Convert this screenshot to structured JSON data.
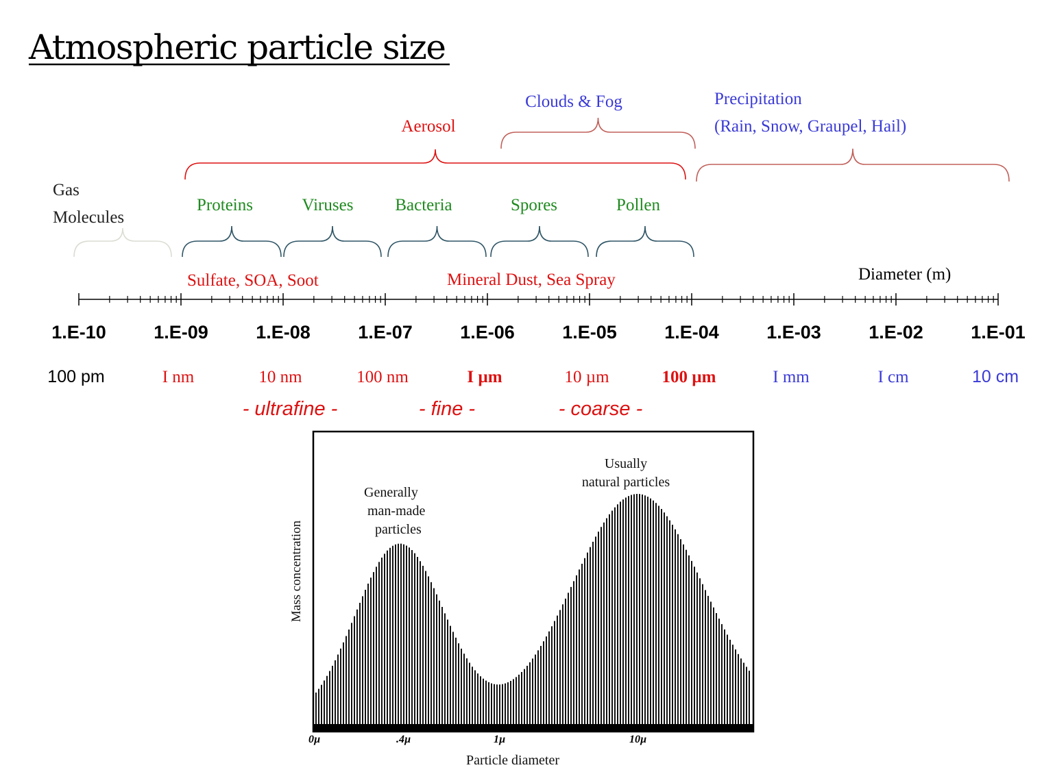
{
  "title": "Atmospheric particle size",
  "groups": {
    "aerosol": "Aerosol",
    "clouds_fog": "Clouds & Fog",
    "precipitation": "Precipitation",
    "precipitation_detail": "(Rain, Snow, Graupel, Hail)",
    "gas_line1": "Gas",
    "gas_line2": "Molecules"
  },
  "bio": [
    "Proteins",
    "Viruses",
    "Bacteria",
    "Spores",
    "Pollen"
  ],
  "chemistry": {
    "fine": "Sulfate, SOA, Soot",
    "coarse": "Mineral Dust, Sea Spray"
  },
  "axis_title": "Diameter (m)",
  "ticks": [
    "1.E-10",
    "1.E-09",
    "1.E-08",
    "1.E-07",
    "1.E-06",
    "1.E-05",
    "1.E-04",
    "1.E-03",
    "1.E-02",
    "1.E-01"
  ],
  "units": [
    "100 pm",
    "I nm",
    "10 nm",
    "100 nm",
    "I µm",
    "10 µm",
    "100 µm",
    "I mm",
    "I cm",
    "10 cm"
  ],
  "classes": [
    "- ultrafine -",
    "- fine -",
    "- coarse -"
  ],
  "colors": {
    "red": "#dd1111",
    "green": "#1f8a1f",
    "blue": "#3a3ad6",
    "bracket_teal": "#2f5566",
    "bracket_brown": "#c0605a",
    "bracket_grey": "#dcdcd4"
  },
  "chart_data": {
    "type": "area",
    "title": "",
    "xlabel": "Particle diameter",
    "ylabel": "Mass concentration",
    "x_ticks": [
      "0µ",
      ".4µ",
      "1µ",
      "10µ"
    ],
    "annotations": [
      {
        "lines": [
          "Generally",
          "man-made",
          "particles"
        ]
      },
      {
        "lines": [
          "Usually",
          "natural particles"
        ]
      }
    ],
    "modes": [
      {
        "peak_at": ".4µ",
        "relative_peak": 0.78
      },
      {
        "peak_at": "10µ",
        "relative_peak": 1.0
      }
    ],
    "minimum_at": "1µ",
    "relative_minimum": 0.17,
    "grid": false
  }
}
